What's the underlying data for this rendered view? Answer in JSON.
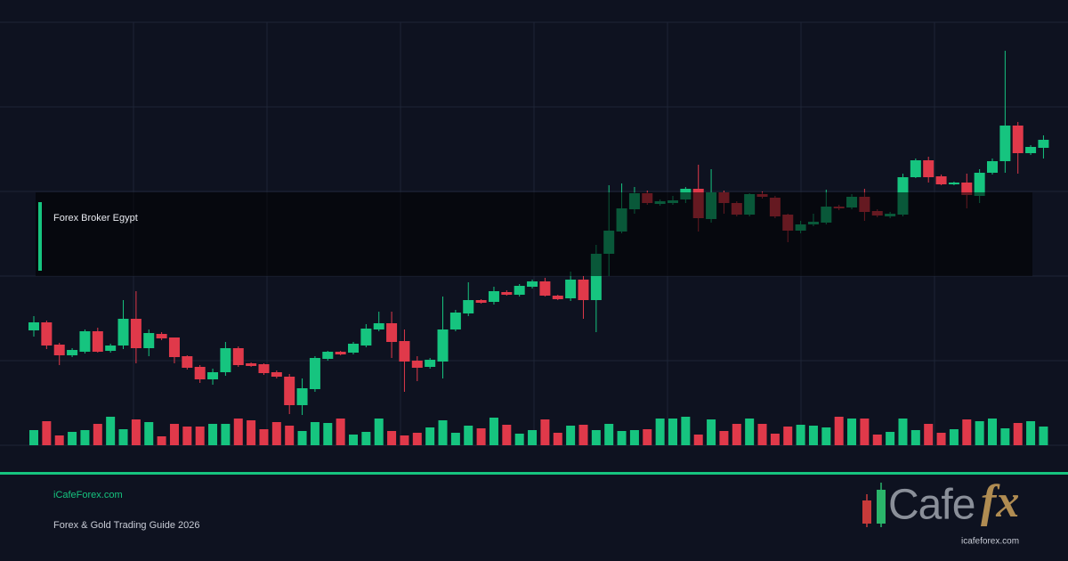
{
  "chart_data": {
    "type": "candlestick",
    "up_color": "#16c47f",
    "down_color": "#e0394a",
    "grid": true,
    "ylim": [
      0,
      475
    ],
    "yticks": [
      0,
      95,
      190,
      285,
      380,
      475
    ],
    "open": [
      129,
      138,
      113,
      101,
      105,
      128,
      106,
      112,
      142,
      109,
      125,
      121,
      100,
      88,
      74,
      82,
      109,
      92,
      91,
      82,
      77,
      45,
      63,
      97,
      105,
      104,
      112,
      130,
      137,
      117,
      95,
      88,
      94,
      130,
      148,
      163,
      161,
      172,
      169,
      178,
      184,
      168,
      165,
      186,
      163,
      215,
      240,
      265,
      283,
      271,
      272,
      276,
      288,
      254,
      284,
      272,
      259,
      282,
      278,
      259,
      241,
      248,
      250,
      268,
      267,
      279,
      263,
      257,
      259,
      301,
      320,
      302,
      293,
      295,
      280,
      306,
      319,
      359,
      328,
      334
    ],
    "high": [
      145,
      140,
      115,
      109,
      130,
      132,
      114,
      163,
      173,
      130,
      127,
      121,
      101,
      90,
      86,
      116,
      111,
      93,
      92,
      84,
      80,
      75,
      100,
      106,
      106,
      116,
      136,
      150,
      150,
      130,
      100,
      98,
      167,
      152,
      183,
      164,
      178,
      174,
      181,
      186,
      188,
      169,
      195,
      190,
      225,
      292,
      294,
      290,
      286,
      276,
      280,
      290,
      315,
      310,
      286,
      274,
      283,
      285,
      280,
      260,
      252,
      260,
      287,
      270,
      282,
      288,
      265,
      262,
      305,
      322,
      324,
      304,
      296,
      305,
      310,
      322,
      443,
      363,
      337,
      348
    ],
    "low": [
      122,
      108,
      90,
      99,
      103,
      104,
      104,
      108,
      92,
      100,
      118,
      92,
      85,
      70,
      68,
      78,
      88,
      88,
      79,
      75,
      35,
      34,
      60,
      95,
      101,
      102,
      110,
      128,
      98,
      60,
      72,
      86,
      75,
      128,
      145,
      159,
      158,
      168,
      167,
      176,
      167,
      163,
      162,
      142,
      127,
      190,
      238,
      260,
      270,
      269,
      270,
      272,
      240,
      250,
      260,
      257,
      257,
      277,
      255,
      228,
      238,
      246,
      248,
      264,
      265,
      252,
      256,
      255,
      257,
      300,
      295,
      292,
      292,
      266,
      272,
      304,
      306,
      305,
      326,
      322
    ],
    "close": [
      138,
      112,
      101,
      107,
      128,
      105,
      112,
      142,
      109,
      126,
      120,
      99,
      87,
      74,
      82,
      109,
      90,
      89,
      81,
      77,
      45,
      64,
      98,
      105,
      102,
      114,
      131,
      137,
      116,
      94,
      87,
      96,
      130,
      149,
      163,
      160,
      173,
      169,
      179,
      184,
      168,
      164,
      186,
      163,
      215,
      241,
      266,
      283,
      272,
      274,
      275,
      288,
      255,
      284,
      272,
      259,
      282,
      279,
      257,
      241,
      248,
      251,
      268,
      266,
      279,
      262,
      258,
      260,
      301,
      320,
      301,
      293,
      295,
      281,
      306,
      319,
      359,
      328,
      335,
      343
    ],
    "volume": [
      17,
      27,
      11,
      15,
      17,
      24,
      32,
      18,
      29,
      26,
      10,
      24,
      21,
      21,
      24,
      24,
      30,
      28,
      18,
      26,
      22,
      16,
      26,
      25,
      30,
      12,
      15,
      30,
      16,
      11,
      14,
      20,
      28,
      14,
      22,
      19,
      31,
      23,
      13,
      17,
      29,
      14,
      22,
      23,
      17,
      24,
      16,
      17,
      18,
      30,
      30,
      32,
      12,
      29,
      16,
      24,
      30,
      24,
      13,
      21,
      23,
      22,
      20,
      32,
      30,
      30,
      12,
      15,
      30,
      17,
      24,
      14,
      18,
      29,
      27,
      30,
      19,
      25,
      27,
      21
    ]
  },
  "banner": {
    "label": "Forex Broker Egypt"
  },
  "footer": {
    "site": "iCafeForex.com",
    "subtitle": "Forex & Gold Trading Guide 2026"
  },
  "logo": {
    "word": "Cafe",
    "mark": "fx",
    "url": "icafeforex.com"
  }
}
